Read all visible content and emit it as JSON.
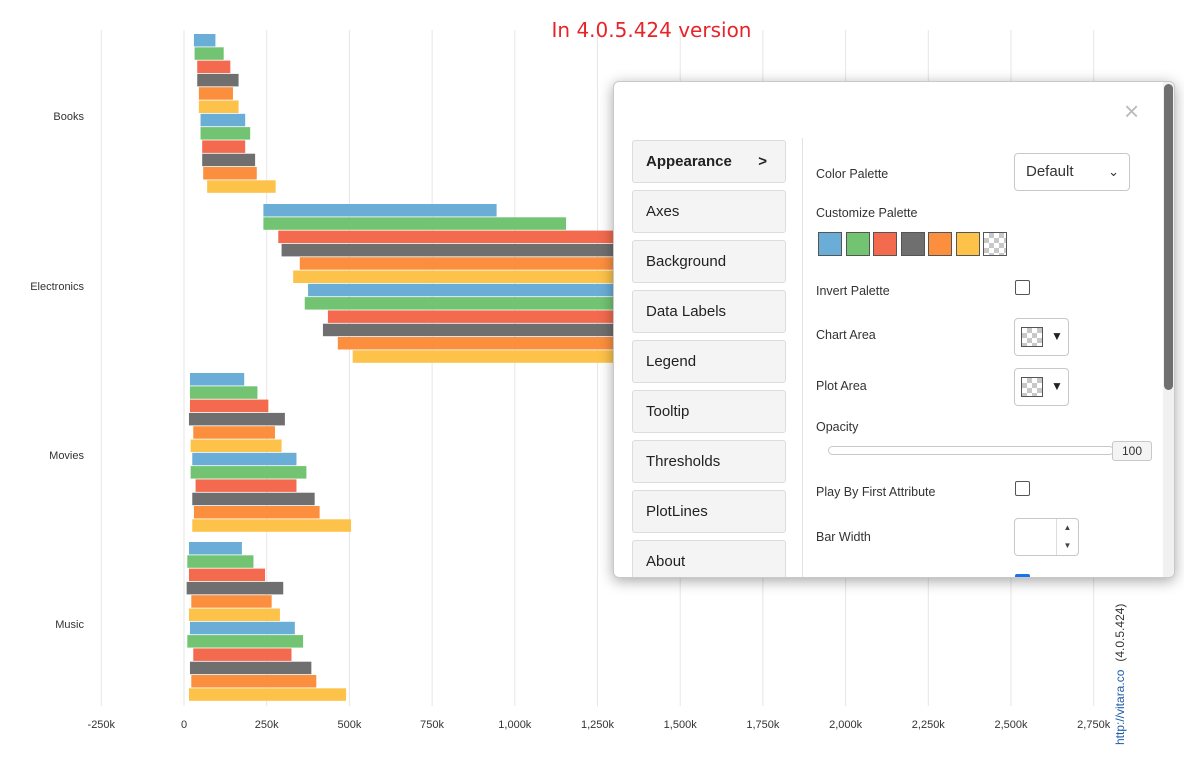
{
  "version_title": "In 4.0.5.424 version",
  "colors": {
    "series": [
      "#6aaed8",
      "#72c472",
      "#f46a4e",
      "#6f6f6f",
      "#fc8f3e",
      "#fdc249"
    ],
    "grid": "#e6e6e6",
    "title": "#e8242b",
    "active_checkbox": "#1a73e8"
  },
  "chart_data": {
    "type": "bar",
    "orientation": "horizontal",
    "categories": [
      "Books",
      "Electronics",
      "Movies",
      "Music"
    ],
    "x_ticks": [
      "-250k",
      "0",
      "250k",
      "500k",
      "750k",
      "1,000k",
      "1,250k",
      "1,500k",
      "1,750k",
      "2,000k",
      "2,250k",
      "2,500k",
      "2,750k"
    ],
    "xlim": [
      -250000,
      2750000
    ],
    "grid": true,
    "bars": [
      [
        [
          30000,
          95000
        ],
        [
          32000,
          120000
        ],
        [
          40000,
          140000
        ],
        [
          40000,
          165000
        ],
        [
          45000,
          148000
        ],
        [
          45000,
          165000
        ],
        [
          50000,
          185000
        ],
        [
          50000,
          200000
        ],
        [
          55000,
          185000
        ],
        [
          55000,
          215000
        ],
        [
          58000,
          220000
        ],
        [
          70000,
          277000
        ]
      ],
      [
        [
          240000,
          945000
        ],
        [
          240000,
          1155000
        ],
        [
          285000,
          1300000
        ],
        [
          295000,
          1300000
        ],
        [
          350000,
          1300000
        ],
        [
          330000,
          1300000
        ],
        [
          375000,
          1300000
        ],
        [
          365000,
          1300000
        ],
        [
          435000,
          1300000
        ],
        [
          420000,
          1300000
        ],
        [
          465000,
          1300000
        ],
        [
          510000,
          1300000
        ]
      ],
      [
        [
          18000,
          182000
        ],
        [
          18000,
          222000
        ],
        [
          18000,
          255000
        ],
        [
          15000,
          305000
        ],
        [
          28000,
          275000
        ],
        [
          20000,
          295000
        ],
        [
          25000,
          340000
        ],
        [
          20000,
          370000
        ],
        [
          35000,
          340000
        ],
        [
          25000,
          395000
        ],
        [
          30000,
          410000
        ],
        [
          25000,
          505000
        ]
      ],
      [
        [
          15000,
          175000
        ],
        [
          10000,
          210000
        ],
        [
          15000,
          245000
        ],
        [
          8000,
          300000
        ],
        [
          22000,
          265000
        ],
        [
          15000,
          290000
        ],
        [
          18000,
          335000
        ],
        [
          10000,
          360000
        ],
        [
          28000,
          325000
        ],
        [
          18000,
          385000
        ],
        [
          22000,
          400000
        ],
        [
          15000,
          490000
        ]
      ]
    ]
  },
  "credit": {
    "link": "http://vitara.co",
    "version": "(4.0.5.424)"
  },
  "panel": {
    "close_icon": "×",
    "nav": [
      {
        "label": "Appearance",
        "arrow": ">"
      },
      {
        "label": "Axes"
      },
      {
        "label": "Background"
      },
      {
        "label": "Data Labels"
      },
      {
        "label": "Legend"
      },
      {
        "label": "Tooltip"
      },
      {
        "label": "Thresholds"
      },
      {
        "label": "PlotLines"
      },
      {
        "label": "About"
      }
    ],
    "appearance": {
      "color_palette_label": "Color Palette",
      "color_palette_value": "Default",
      "customize_palette_label": "Customize Palette",
      "palette_swatches": [
        "#6aaed8",
        "#72c472",
        "#f46a4e",
        "#6f6f6f",
        "#fc8f3e",
        "#fdc249",
        "transparent"
      ],
      "invert_palette_label": "Invert Palette",
      "invert_palette": false,
      "chart_area_label": "Chart Area",
      "plot_area_label": "Plot Area",
      "opacity_label": "Opacity",
      "opacity_value": "100",
      "play_by_first_attribute_label": "Play By First Attribute",
      "play_by_first_attribute": false,
      "bar_width_label": "Bar Width",
      "bar_width_value": ""
    }
  }
}
